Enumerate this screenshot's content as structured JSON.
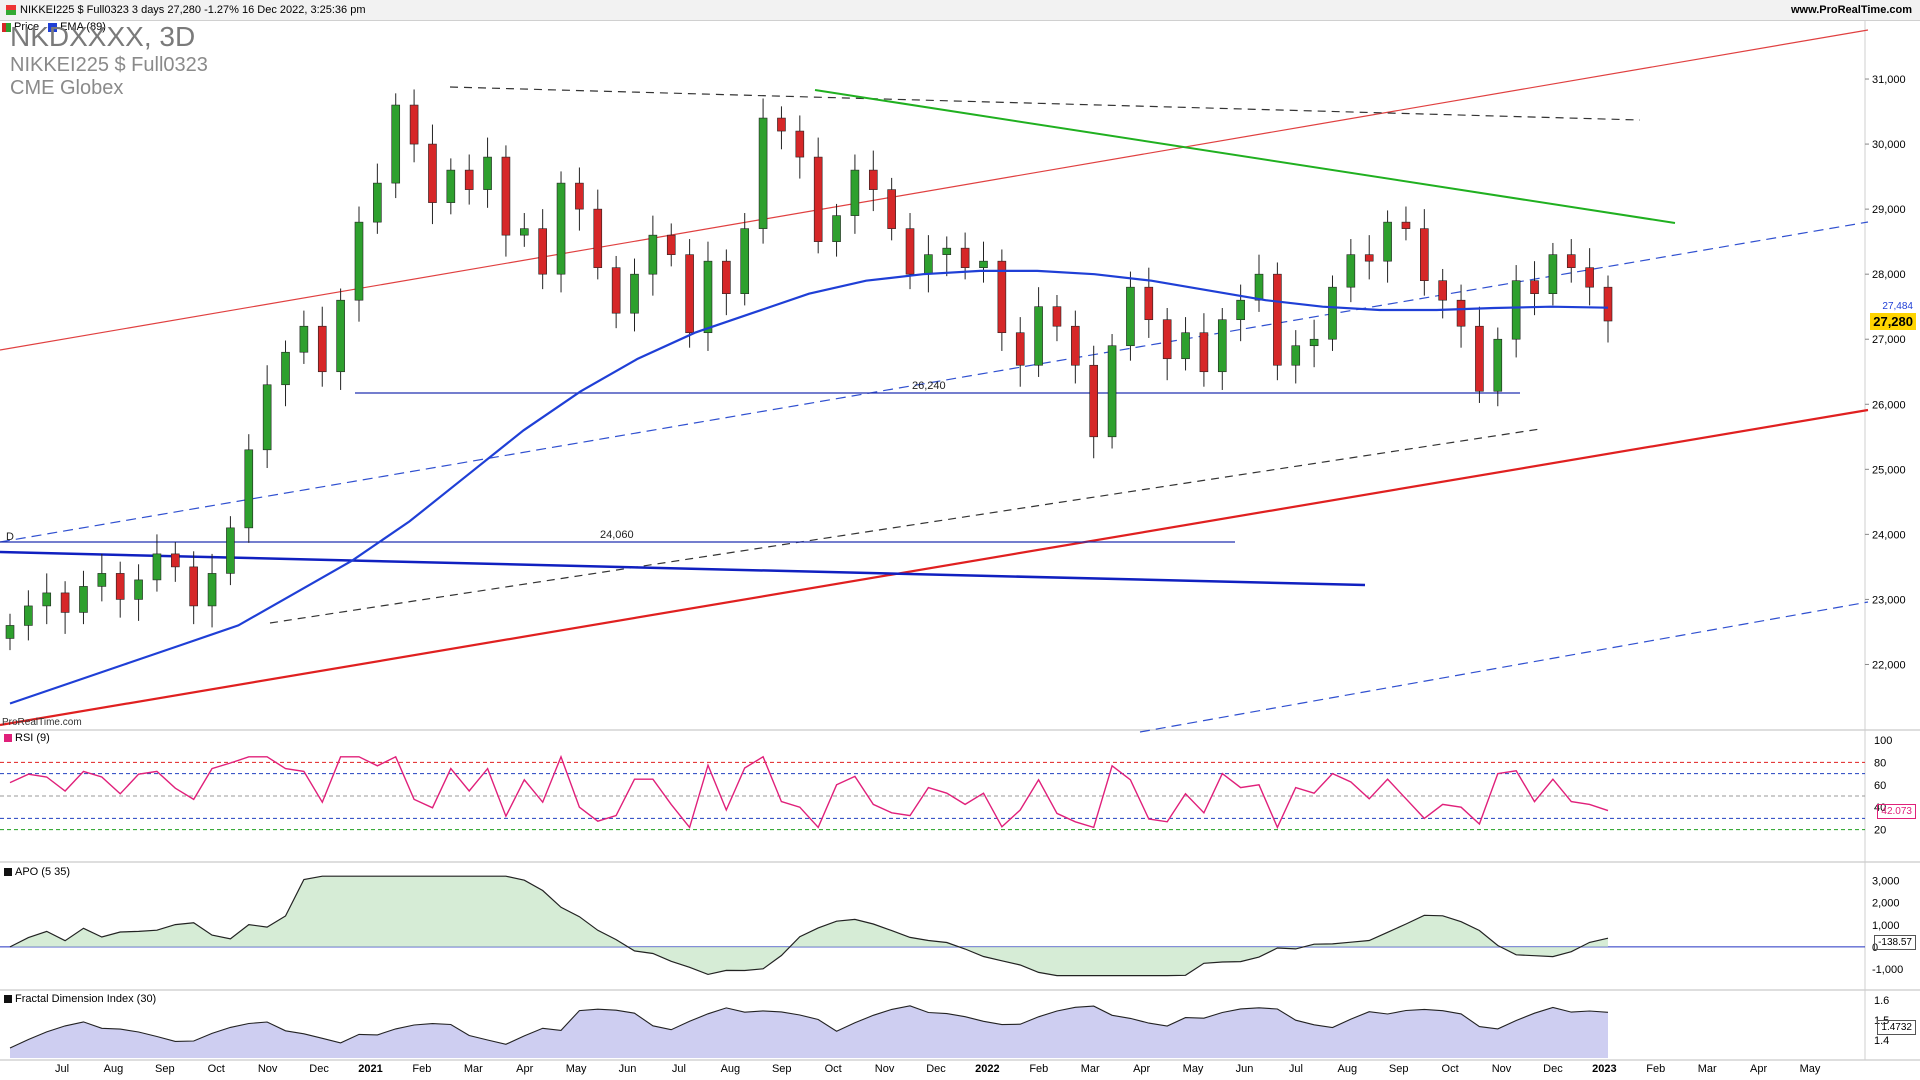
{
  "header": {
    "symbol_line": "NIKKEI225 $ Full0323 3 days 27,280 -1.27% 16 Dec 2022, 3:25:36 pm",
    "site": "www.ProRealTime.com"
  },
  "legend": {
    "price_label": "Price",
    "ema_label": "EMA (89)"
  },
  "title": {
    "main": "NKDXXXX, 3D",
    "line2": "NIKKEI225 $ Full0323",
    "line3": "CME Globex"
  },
  "credit": "ProRealTime.com",
  "colors": {
    "up": "#2ea02e",
    "down": "#d62728",
    "ema": "#1f3fd6",
    "rsi": "#e0207a",
    "apo_fill_pos": "#c8e6c8",
    "apo_fill_neg": "#e6c8c8",
    "fdi_fill": "#c5c6ee"
  },
  "price_axis": {
    "ticks": [
      "31,000",
      "30,000",
      "29,000",
      "28,000",
      "27,000",
      "26,000",
      "25,000",
      "24,000",
      "23,000",
      "22,000"
    ],
    "last_price": "27,280",
    "ema_value": "27,484"
  },
  "annotations": {
    "level_1": "26,240",
    "level_2": "24,060",
    "marker_D": "D"
  },
  "x_axis": {
    "labels": [
      "Jul",
      "Aug",
      "Sep",
      "Oct",
      "Nov",
      "Dec",
      "2021",
      "Feb",
      "Mar",
      "Apr",
      "May",
      "Jun",
      "Jul",
      "Aug",
      "Sep",
      "Oct",
      "Nov",
      "Dec",
      "2022",
      "Feb",
      "Mar",
      "Apr",
      "May",
      "Jun",
      "Jul",
      "Aug",
      "Sep",
      "Oct",
      "Nov",
      "Dec",
      "2023",
      "Feb",
      "Mar",
      "Apr",
      "May"
    ]
  },
  "rsi": {
    "title": "RSI (9)",
    "ticks": [
      "100",
      "80",
      "60",
      "40",
      "20"
    ],
    "value": "42.073"
  },
  "apo": {
    "title": "APO (5 35)",
    "ticks": [
      "3,000",
      "2,000",
      "1,000",
      "0",
      "-1,000"
    ],
    "value": "-138.57"
  },
  "fdi": {
    "title": "Fractal Dimension Index (30)",
    "ticks": [
      "1.6",
      "1.5",
      "1.4"
    ],
    "value": "1.4732"
  },
  "chart_data": {
    "type": "candlestick",
    "title": "NKDXXXX, 3D",
    "series": [
      {
        "name": "Price",
        "approx_closes": [
          22600,
          22900,
          23100,
          22800,
          23200,
          23400,
          23000,
          23300,
          23700,
          23500,
          22900,
          23400,
          24100,
          25300,
          26300,
          26800,
          27200,
          26500,
          27600,
          28800,
          29400,
          30600,
          30000,
          29100,
          29600,
          29300,
          29800,
          28600,
          28700,
          28000,
          29400,
          29000,
          28100,
          27400,
          28000,
          28600,
          28300,
          27100,
          28200,
          27700,
          28700,
          30400,
          30200,
          29800,
          28500,
          28900,
          29600,
          29300,
          28700,
          28000,
          28300,
          28400,
          28100,
          28200,
          27100,
          26600,
          27500,
          27200,
          26600,
          25500,
          26900,
          27800,
          27300,
          26700,
          27100,
          26500,
          27300,
          27600,
          28000,
          26600,
          26900,
          27000,
          27800,
          28300,
          28200,
          28800,
          28700,
          27900,
          27600,
          27200,
          26200,
          27000,
          27900,
          27700,
          28300,
          28100,
          27800,
          27280
        ]
      },
      {
        "name": "EMA (89)",
        "approx_values": [
          21400,
          21700,
          22000,
          22300,
          22600,
          23100,
          23600,
          24200,
          24900,
          25600,
          26200,
          26700,
          27100,
          27400,
          27700,
          27900,
          28000,
          28050,
          28050,
          28000,
          27900,
          27750,
          27600,
          27500,
          27450,
          27450,
          27480,
          27500,
          27484
        ]
      }
    ],
    "ylim": [
      21300,
      31600
    ],
    "horizontal_levels": [
      26240,
      24060
    ]
  }
}
